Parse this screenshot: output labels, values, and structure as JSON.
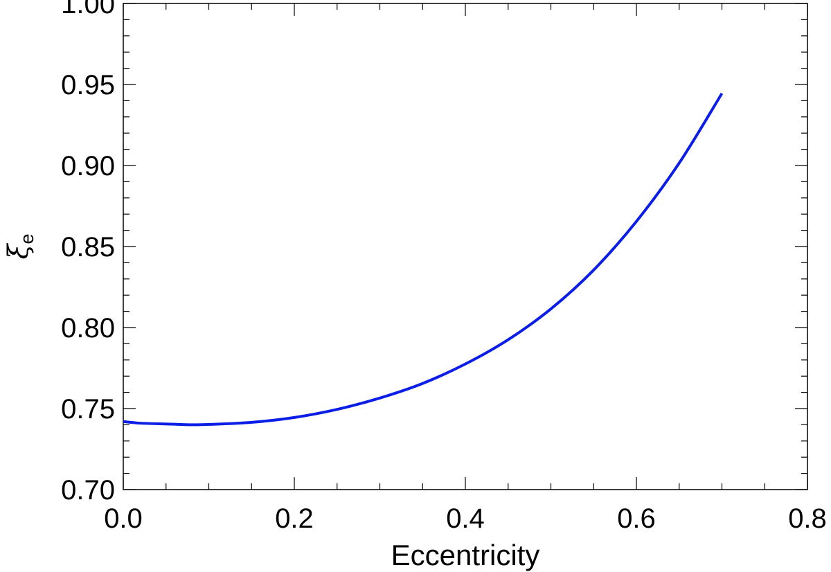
{
  "chart_data": {
    "type": "line",
    "title": "",
    "xlabel": "Eccentricity",
    "ylabel": {
      "symbol": "ξ",
      "subscript": "e"
    },
    "xlim": [
      0.0,
      0.8
    ],
    "ylim": [
      0.7,
      1.0
    ],
    "x_ticks": [
      "0.0",
      "0.2",
      "0.4",
      "0.6",
      "0.8"
    ],
    "y_ticks": [
      "0.70",
      "0.75",
      "0.80",
      "0.85",
      "0.90",
      "0.95",
      "1.00"
    ],
    "grid": false,
    "series": [
      {
        "color": "#0a1ee6",
        "x": [
          0.0,
          0.02,
          0.05,
          0.08,
          0.1,
          0.15,
          0.2,
          0.25,
          0.3,
          0.35,
          0.4,
          0.45,
          0.5,
          0.55,
          0.6,
          0.65,
          0.7
        ],
        "y": [
          0.742,
          0.741,
          0.7405,
          0.74,
          0.7402,
          0.7415,
          0.7445,
          0.7495,
          0.7565,
          0.7655,
          0.7775,
          0.7925,
          0.8115,
          0.8355,
          0.8655,
          0.9015,
          0.9445
        ]
      }
    ]
  }
}
